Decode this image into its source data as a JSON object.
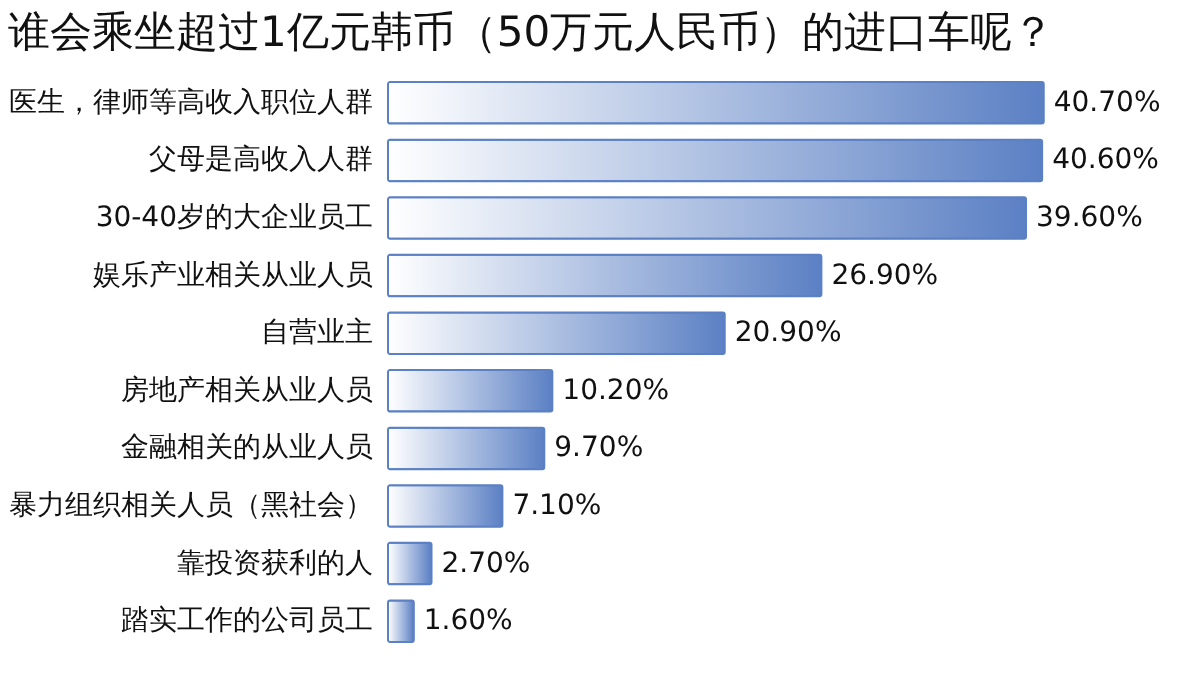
{
  "chart_data": {
    "type": "bar",
    "orientation": "horizontal",
    "title": "谁会乘坐超过1亿元韩币（50万元人民币）的进口车呢？",
    "categories": [
      "医生，律师等高收入职位人群",
      "父母是高收入人群",
      "30-40岁的大企业员工",
      "娱乐产业相关从业人员",
      "自营业主",
      "房地产相关从业人员",
      "金融相关的从业人员",
      "暴力组织相关人员（黑社会）",
      "靠投资获利的人",
      "踏实工作的公司员工"
    ],
    "values": [
      40.7,
      40.6,
      39.6,
      26.9,
      20.9,
      10.2,
      9.7,
      7.1,
      2.7,
      1.6
    ],
    "value_labels": [
      "40.70%",
      "40.60%",
      "39.60%",
      "26.90%",
      "20.90%",
      "10.20%",
      "9.70%",
      "7.10%",
      "2.70%",
      "1.60%"
    ],
    "color": "#5b80c4"
  }
}
